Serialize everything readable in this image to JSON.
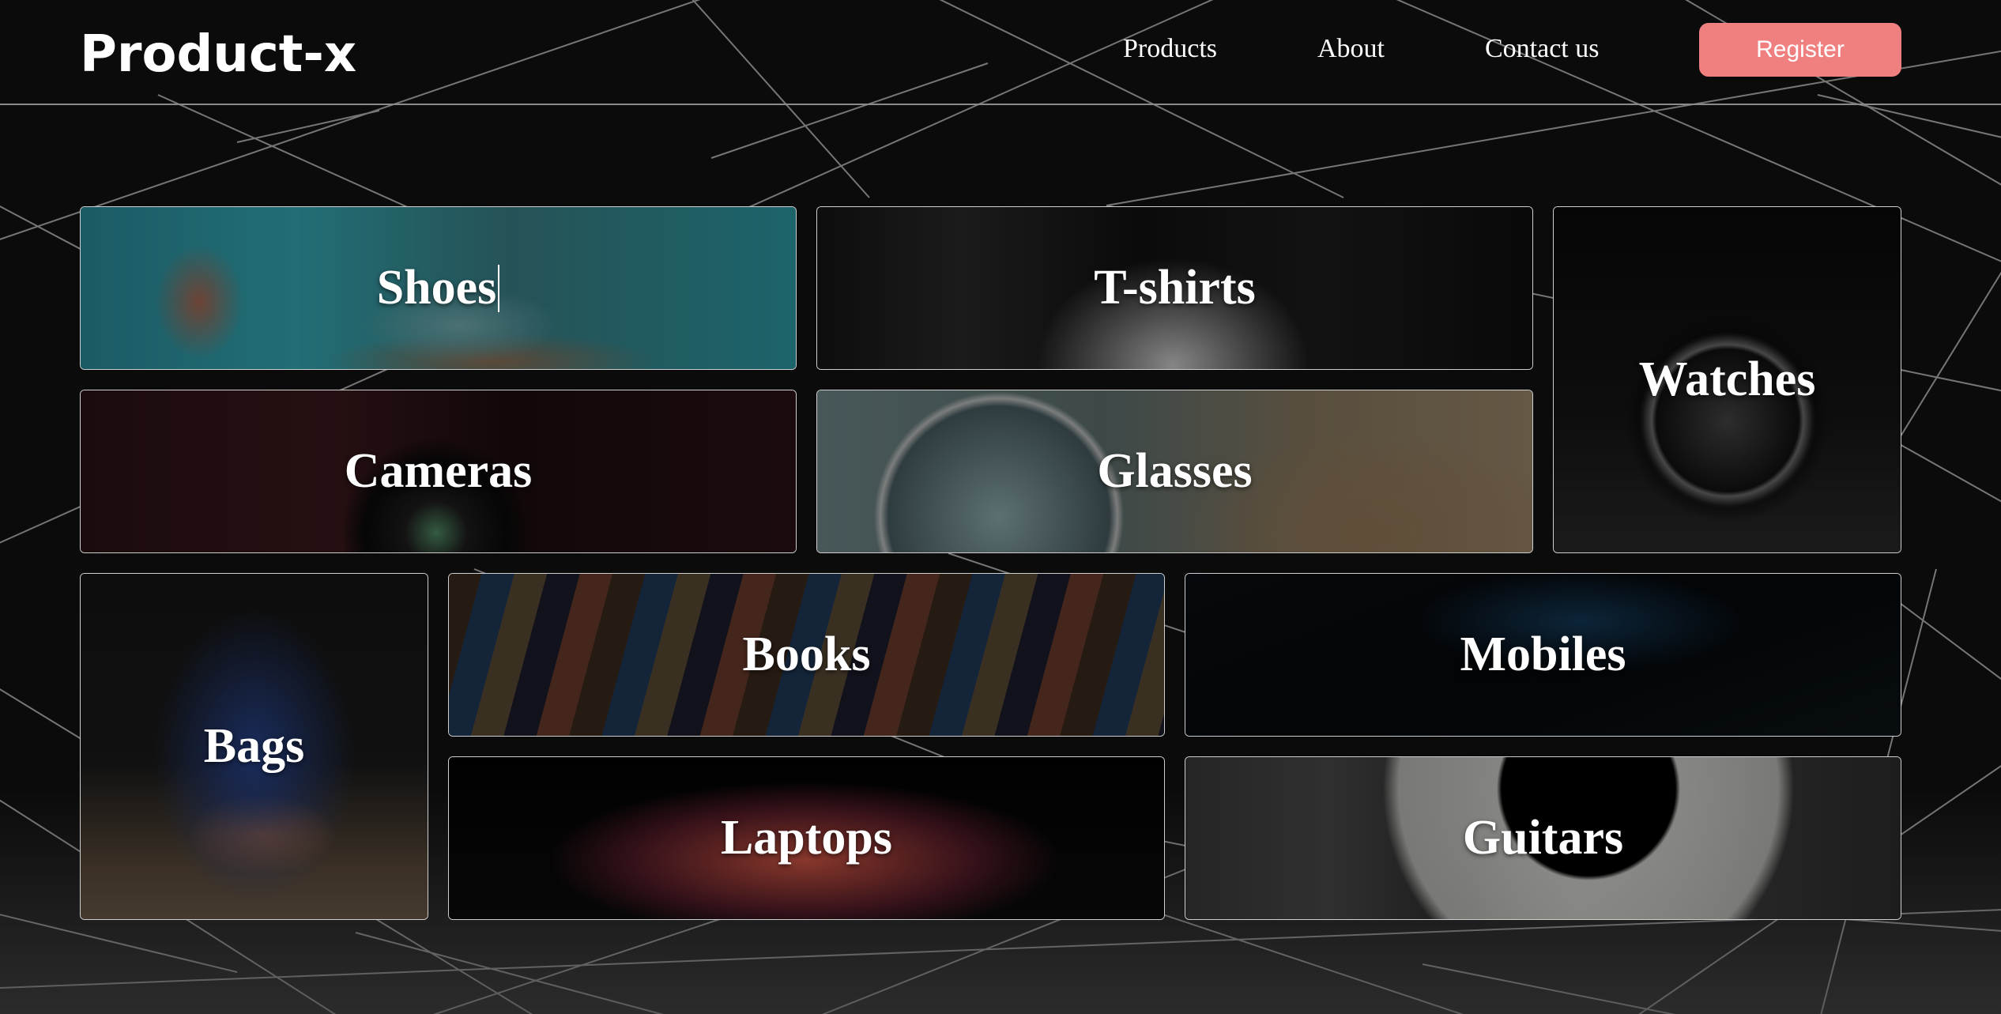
{
  "brand": {
    "logo": "Product-x"
  },
  "nav": {
    "products": "Products",
    "about": "About",
    "contact": "Contact us",
    "register": "Register"
  },
  "categories": [
    {
      "label": "Shoes"
    },
    {
      "label": "T-shirts"
    },
    {
      "label": "Watches"
    },
    {
      "label": "Cameras"
    },
    {
      "label": "Glasses"
    },
    {
      "label": "Bags"
    },
    {
      "label": "Books"
    },
    {
      "label": "Mobiles"
    },
    {
      "label": "Laptops"
    },
    {
      "label": "Guitars"
    }
  ],
  "theme": {
    "background": "#0b0b0b",
    "accent": "#f08080",
    "tile_border": "#cfcfcf"
  }
}
